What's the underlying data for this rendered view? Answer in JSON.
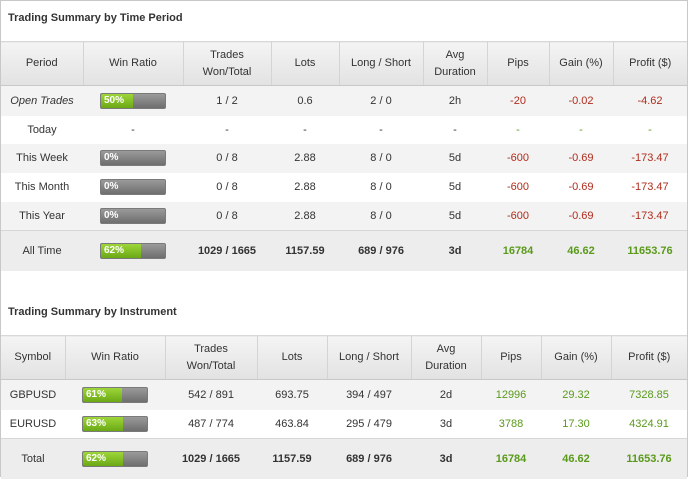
{
  "section1": {
    "title": "Trading Summary by Time Period",
    "headers": [
      "Period",
      "Win Ratio",
      "Trades\nWon/Total",
      "Lots",
      "Long / Short",
      "Avg\nDuration",
      "Pips",
      "Gain (%)",
      "Profit ($)"
    ],
    "rows": [
      {
        "label": "Open Trades",
        "win_ratio": "50%",
        "win_pct": 50,
        "trades": "1 / 2",
        "lots": "0.6",
        "long_short": "2 / 0",
        "duration": "2h",
        "pips": "-20",
        "gain": "-0.02",
        "profit": "-4.62"
      },
      {
        "label": "Today",
        "win_ratio": "-",
        "win_pct": null,
        "trades": "-",
        "lots": "-",
        "long_short": "-",
        "duration": "-",
        "pips": "-",
        "gain": "-",
        "profit": "-"
      },
      {
        "label": "This Week",
        "win_ratio": "0%",
        "win_pct": 0,
        "trades": "0 / 8",
        "lots": "2.88",
        "long_short": "8 / 0",
        "duration": "5d",
        "pips": "-600",
        "gain": "-0.69",
        "profit": "-173.47"
      },
      {
        "label": "This Month",
        "win_ratio": "0%",
        "win_pct": 0,
        "trades": "0 / 8",
        "lots": "2.88",
        "long_short": "8 / 0",
        "duration": "5d",
        "pips": "-600",
        "gain": "-0.69",
        "profit": "-173.47"
      },
      {
        "label": "This Year",
        "win_ratio": "0%",
        "win_pct": 0,
        "trades": "0 / 8",
        "lots": "2.88",
        "long_short": "8 / 0",
        "duration": "5d",
        "pips": "-600",
        "gain": "-0.69",
        "profit": "-173.47"
      }
    ],
    "total": {
      "label": "All Time",
      "win_ratio": "62%",
      "win_pct": 62,
      "trades": "1029 / 1665",
      "lots": "1157.59",
      "long_short": "689 / 976",
      "duration": "3d",
      "pips": "16784",
      "gain": "46.62",
      "profit": "11653.76"
    }
  },
  "section2": {
    "title": "Trading Summary by Instrument",
    "headers": [
      "Symbol",
      "Win Ratio",
      "Trades\nWon/Total",
      "Lots",
      "Long / Short",
      "Avg\nDuration",
      "Pips",
      "Gain (%)",
      "Profit ($)"
    ],
    "rows": [
      {
        "label": "GBPUSD",
        "win_ratio": "61%",
        "win_pct": 61,
        "trades": "542 / 891",
        "lots": "693.75",
        "long_short": "394 / 497",
        "duration": "2d",
        "pips": "12996",
        "gain": "29.32",
        "profit": "7328.85"
      },
      {
        "label": "EURUSD",
        "win_ratio": "63%",
        "win_pct": 63,
        "trades": "487 / 774",
        "lots": "463.84",
        "long_short": "295 / 479",
        "duration": "3d",
        "pips": "3788",
        "gain": "17.30",
        "profit": "4324.91"
      }
    ],
    "total": {
      "label": "Total",
      "win_ratio": "62%",
      "win_pct": 62,
      "trades": "1029 / 1665",
      "lots": "1157.59",
      "long_short": "689 / 976",
      "duration": "3d",
      "pips": "16784",
      "gain": "46.62",
      "profit": "11653.76"
    }
  },
  "colors": {
    "negative": "#b02c1c",
    "positive": "#5a9a1a",
    "bar_fill": "#7cbf22",
    "bar_track": "#8a8a8a"
  }
}
